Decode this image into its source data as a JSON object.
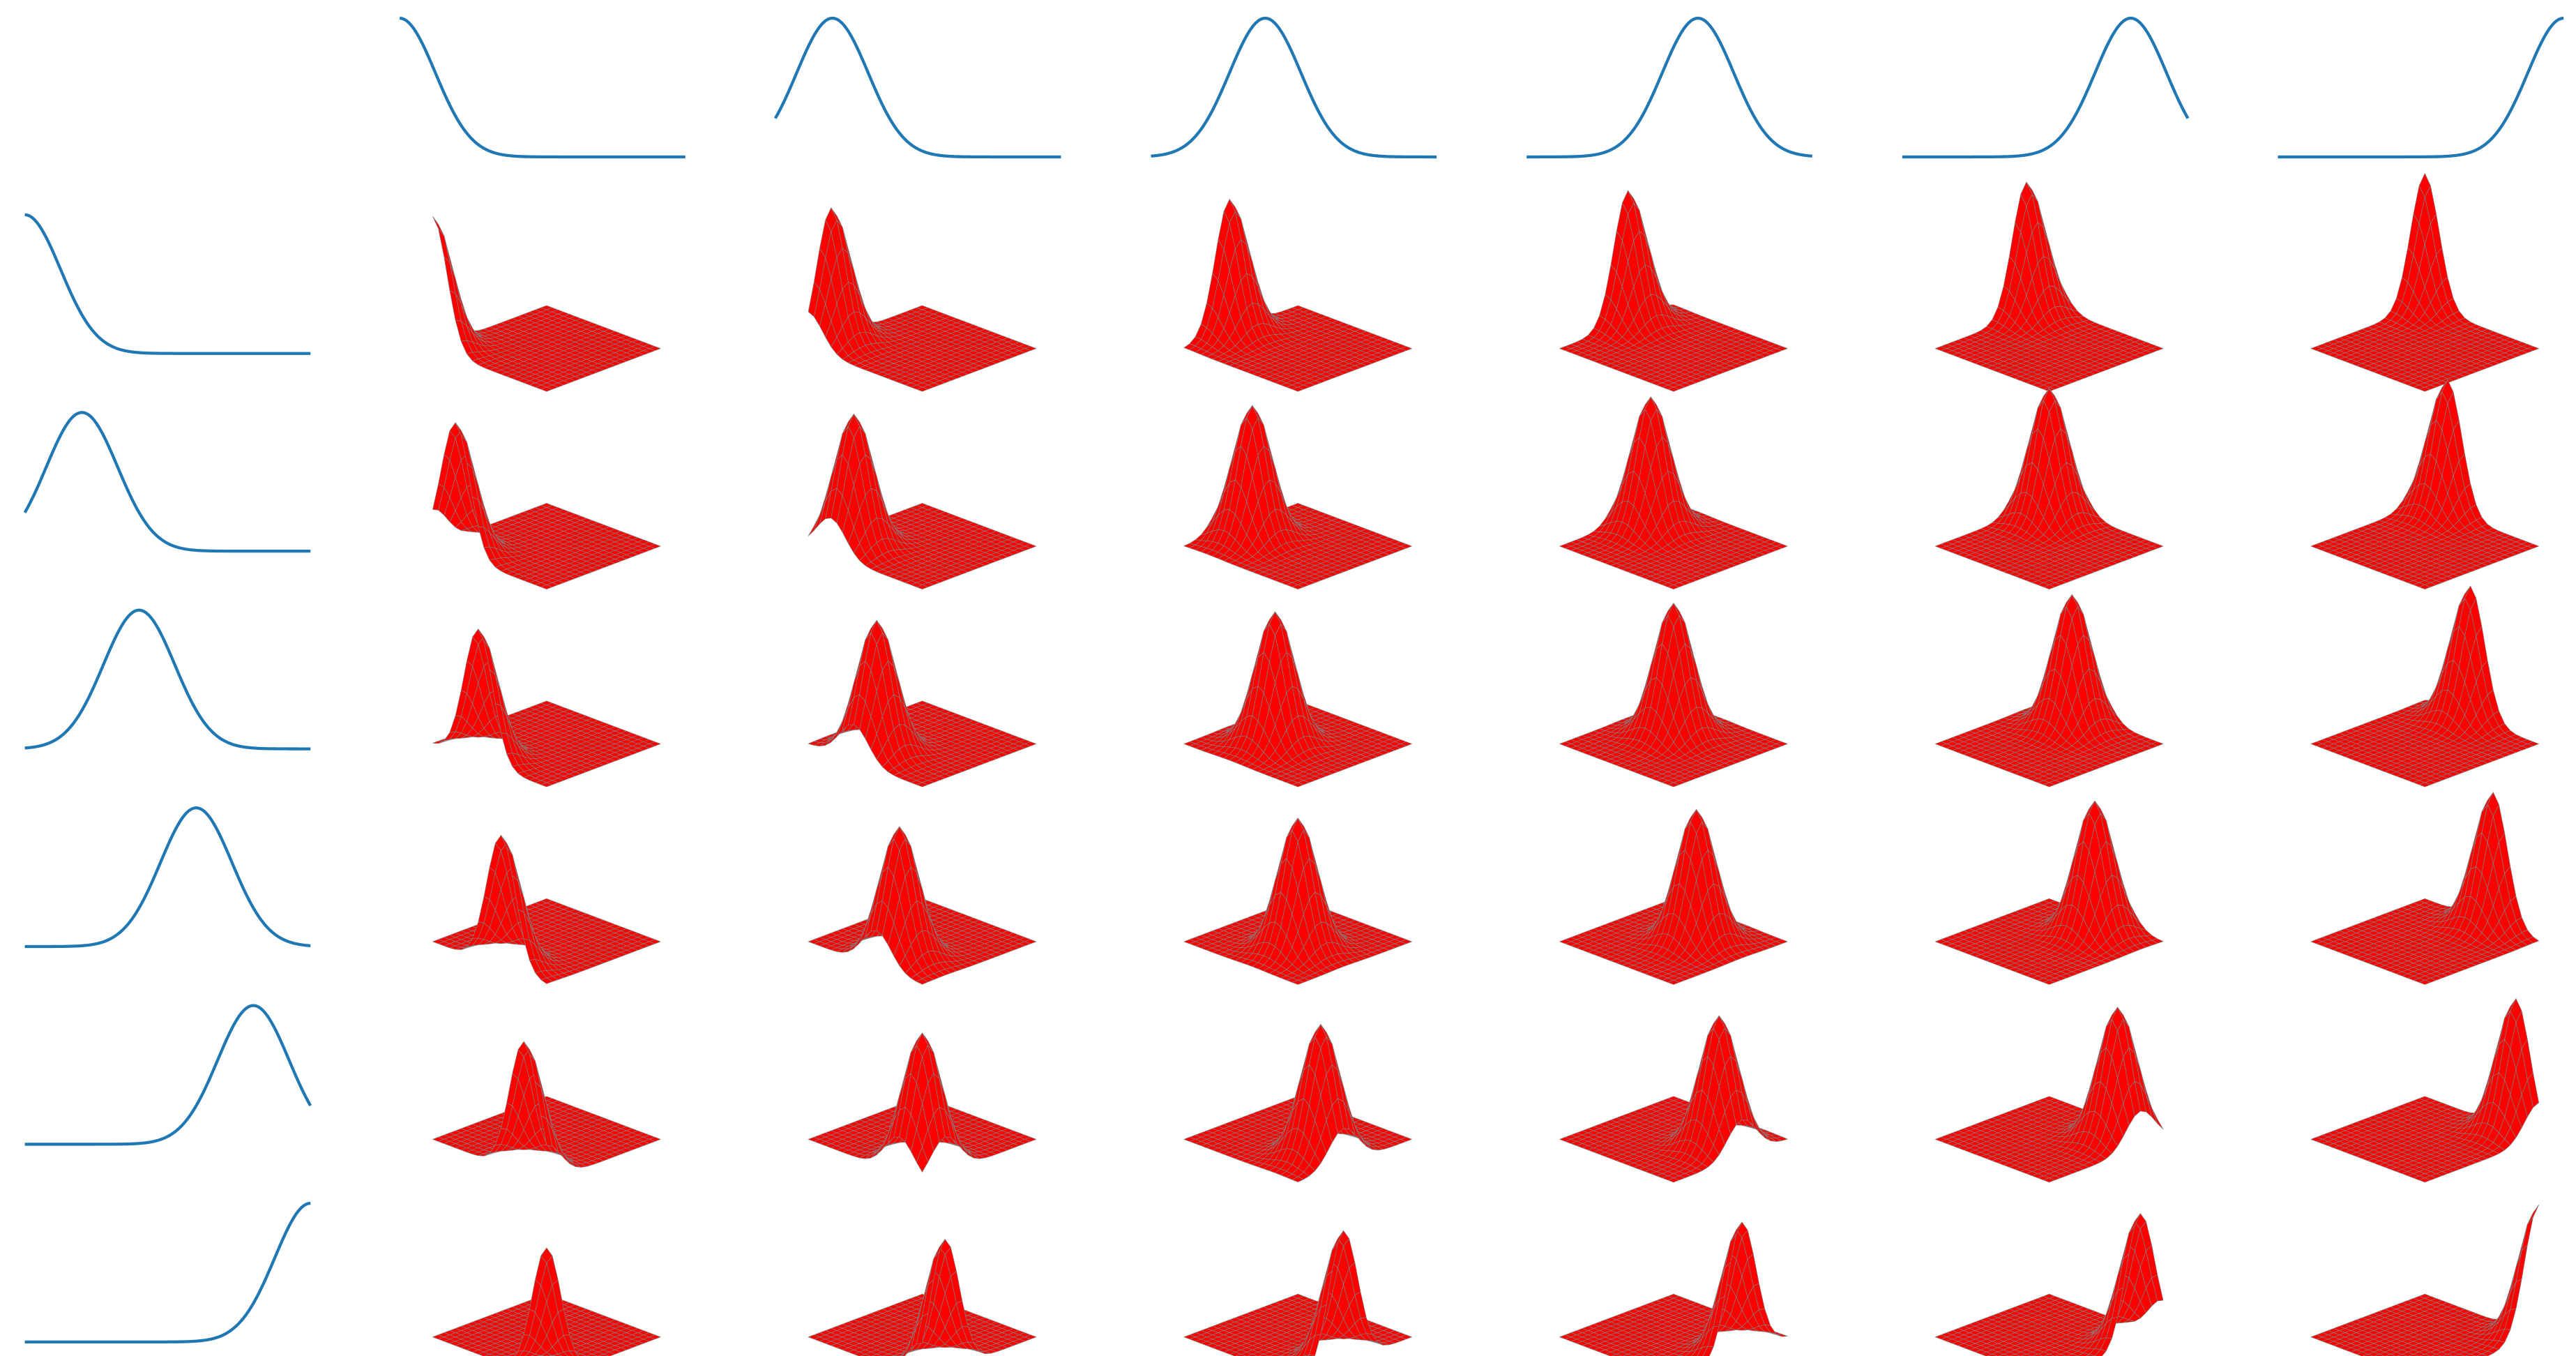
{
  "chart_data": {
    "type": "basis-grid",
    "centers": [
      0,
      0.2,
      0.4,
      0.6,
      0.8,
      1
    ],
    "width": 0.125,
    "line_color": "#1f77b4",
    "surface_color": "#ff0000",
    "edge_color": "#808080"
  }
}
